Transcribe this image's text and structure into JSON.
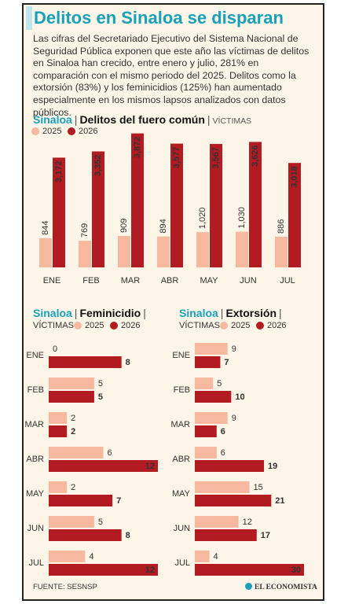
{
  "title": "Delitos en Sinaloa se disparan",
  "intro": "Las cifras del Secretariado Ejecutivo del Sistema Nacional de Seguridad Pública exponen que este año las víctimas de delitos en Sinaloa han crecido, entre enero y julio, 281% en comparación con el mismo periodo del 2025. Delitos como la extorsión (83%) y los feminicidios (125%) han aumentado especialmente en los mismos lapsos analizados con datos públicos.",
  "separator": "|",
  "chart_data": [
    {
      "type": "bar",
      "region": "Sinaloa",
      "title": "Delitos del fuero común",
      "unit_label": "VÍCTIMAS",
      "categories": [
        "ENE",
        "FEB",
        "MAR",
        "ABR",
        "MAY",
        "JUN",
        "JUL"
      ],
      "series": [
        {
          "name": "2025",
          "color": "#f6b89f",
          "values": [
            844,
            769,
            909,
            894,
            1020,
            1030,
            886
          ],
          "value_labels": [
            "844",
            "769",
            "909",
            "894",
            "1,020",
            "1,030",
            "886"
          ]
        },
        {
          "name": "2026",
          "color": "#b31b22",
          "values": [
            3172,
            3352,
            3872,
            3577,
            3567,
            3626,
            3018
          ],
          "value_labels": [
            "3,172",
            "3,352",
            "3,872",
            "3,577",
            "3,567",
            "3,626",
            "3,018"
          ]
        }
      ],
      "ylim": [
        0,
        4000
      ]
    },
    {
      "type": "hbar",
      "region": "Sinaloa",
      "title": "Feminicidio",
      "unit_label": "VÍCTIMAS",
      "categories": [
        "ENE",
        "FEB",
        "MAR",
        "ABR",
        "MAY",
        "JUN",
        "JUL"
      ],
      "series": [
        {
          "name": "2025",
          "color": "#f6b89f",
          "values": [
            0,
            5,
            2,
            6,
            2,
            5,
            4
          ]
        },
        {
          "name": "2026",
          "color": "#b31b22",
          "values": [
            8,
            5,
            2,
            12,
            7,
            8,
            12
          ]
        }
      ],
      "xlim": [
        0,
        12
      ]
    },
    {
      "type": "hbar",
      "region": "Sinaloa",
      "title": "Extorsión",
      "unit_label": "VÍCTIMAS",
      "categories": [
        "ENE",
        "FEB",
        "MAR",
        "ABR",
        "MAY",
        "JUN",
        "JUL"
      ],
      "series": [
        {
          "name": "2025",
          "color": "#f6b89f",
          "values": [
            9,
            5,
            9,
            6,
            15,
            12,
            4
          ]
        },
        {
          "name": "2026",
          "color": "#b31b22",
          "values": [
            7,
            10,
            6,
            19,
            21,
            17,
            30
          ]
        }
      ],
      "xlim": [
        0,
        30
      ]
    }
  ],
  "source": "FUENTE: SESNSP",
  "logo": "EL ECONOMISTA"
}
